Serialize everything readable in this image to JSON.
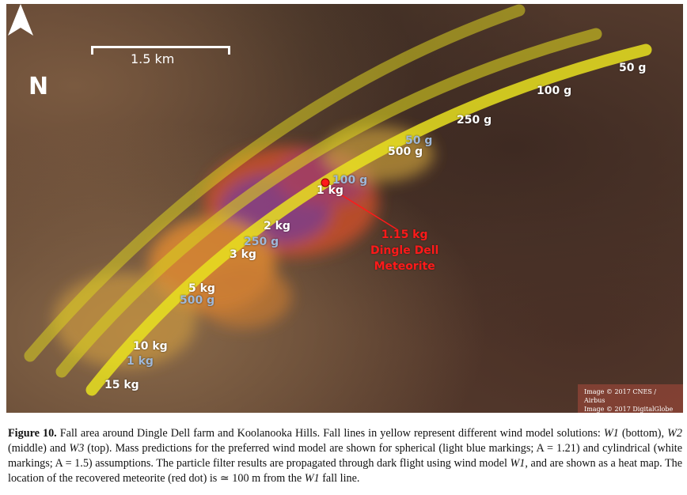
{
  "figure": {
    "scale_label": "1.5 km",
    "north_label": "N",
    "credits": [
      "Image © 2017 CNES / Airbus",
      "Image © 2017 DigitalGlobe"
    ],
    "colors": {
      "fall_line": "#e8e020",
      "spherical_marker": "#9fb8d8",
      "cylindrical_marker": "#ffffff",
      "meteorite": "#ff1a1a"
    },
    "fall_lines": [
      "W1",
      "W2",
      "W3"
    ],
    "cylindrical_labels": [
      "50 g",
      "100 g",
      "250 g",
      "500 g",
      "1 kg",
      "2 kg",
      "3 kg",
      "5 kg",
      "10 kg",
      "15 kg"
    ],
    "spherical_labels": [
      "50 g",
      "100 g",
      "250 g",
      "500 g",
      "1 kg"
    ],
    "meteorite_label": [
      "1.15 kg",
      "Dingle Dell",
      "Meteorite"
    ]
  },
  "caption": {
    "label": "Figure 10.",
    "text_1": " Fall area around Dingle Dell farm and Koolanooka Hills. Fall lines in yellow represent different wind model solutions: ",
    "w1": "W1",
    "text_2": " (bottom), ",
    "w2": "W2",
    "text_3": " (middle) and ",
    "w3": "W3",
    "text_4": " (top). Mass predictions for the preferred wind model are shown for spherical (light blue markings; A = 1.21) and cylindrical (white markings; A = 1.5) assumptions. The particle filter results are propagated through dark flight using wind model ",
    "w1b": "W1",
    "text_5": ", and are shown as a heat map. The location of the recovered meteorite (red dot) is ≃ 100 m from the ",
    "w1c": "W1",
    "text_6": " fall line."
  }
}
